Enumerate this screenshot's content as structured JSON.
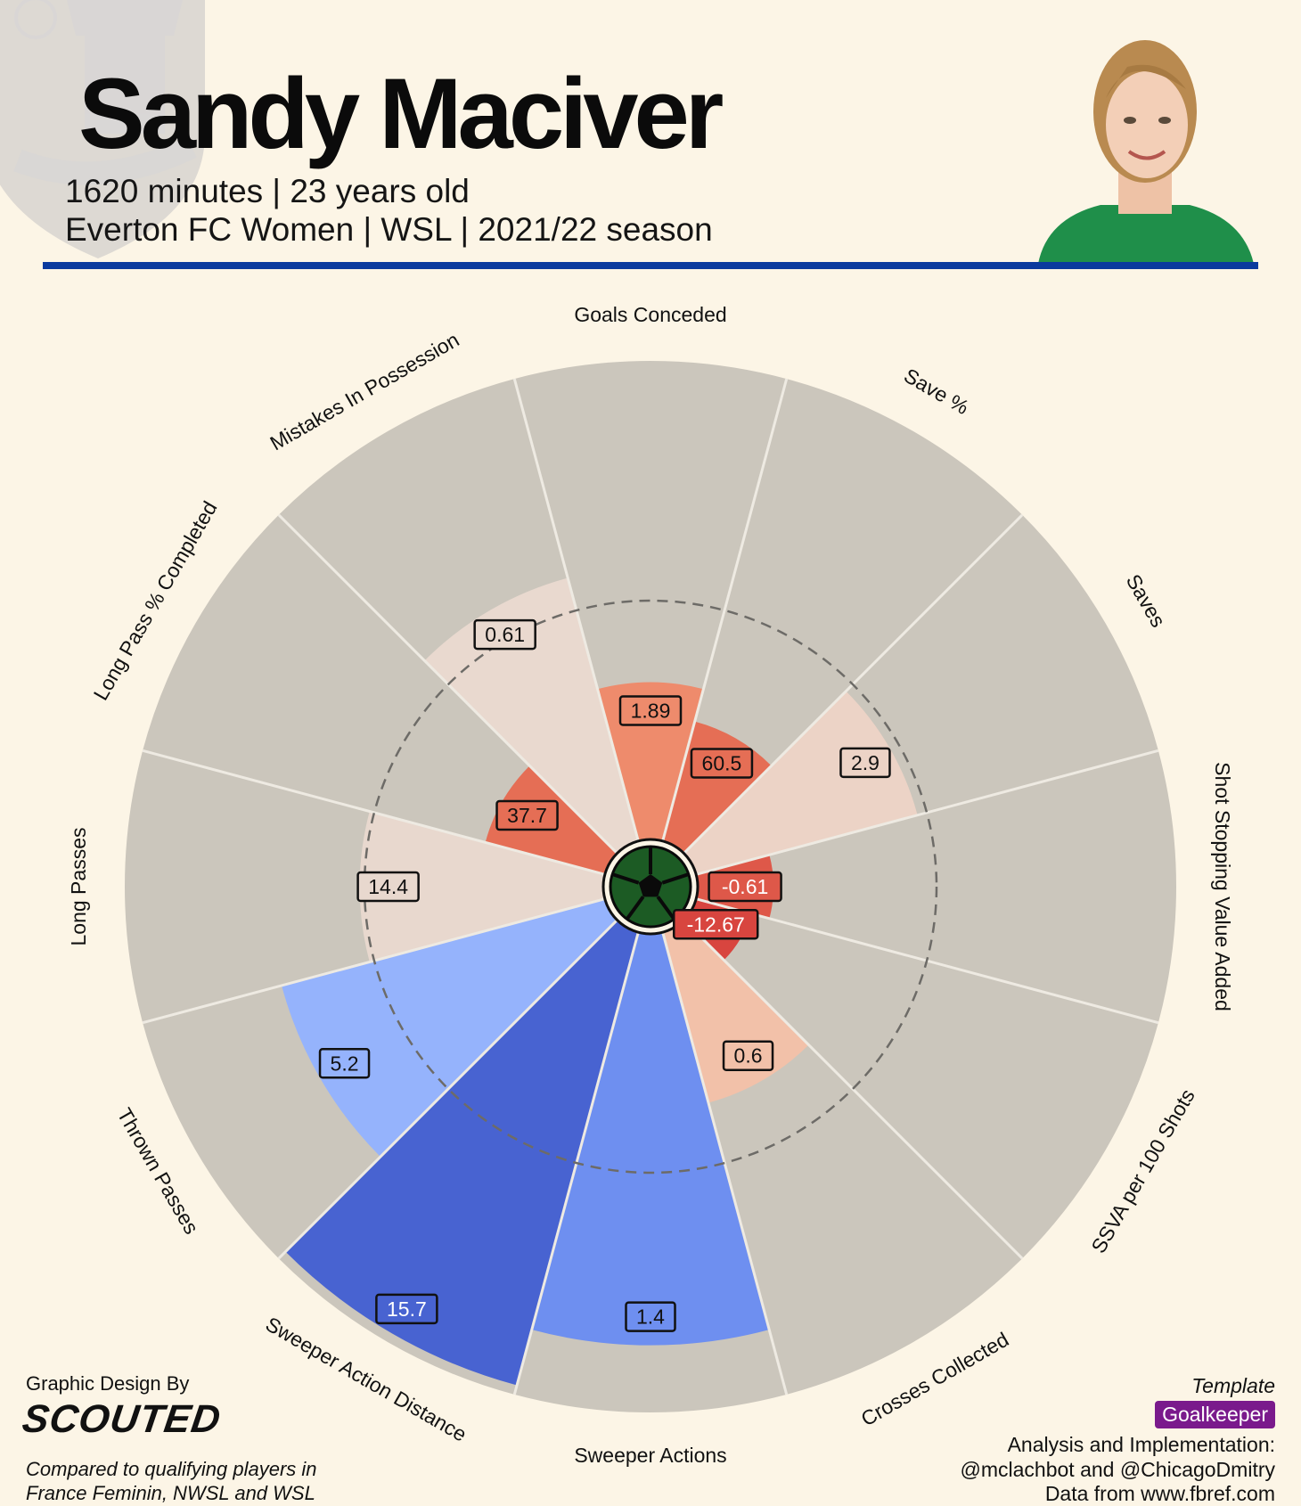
{
  "header": {
    "name": "Sandy Maciver",
    "minutes_age": "1620 minutes | 23 years old",
    "team_league_season": "Everton FC Women | WSL | 2021/22 season",
    "accent_color": "#0a3a9e"
  },
  "footer": {
    "design_by": "Graphic Design By",
    "brand": "SCOUTED",
    "compared_line1": "Compared to qualifying players in",
    "compared_line2": "France Feminin, NWSL and WSL",
    "template_label": "Template",
    "template_value": "Goalkeeper",
    "analysis_line1": "Analysis and Implementation:",
    "analysis_line2": "@mclachbot and @ChicagoDmitry",
    "data_source": "Data from www.fbref.com"
  },
  "chart_data": {
    "type": "polar-bar",
    "title": "",
    "range": [
      0,
      100
    ],
    "reference_circle": 50,
    "categories": [
      {
        "name": "Goals Conceded",
        "value": "1.89",
        "percentile": 33,
        "color": "#ee8b6c"
      },
      {
        "name": "Save %",
        "value": "60.5",
        "percentile": 26,
        "color": "#e56e55"
      },
      {
        "name": "Saves",
        "value": "2.9",
        "percentile": 48,
        "color": "#ecd3c6"
      },
      {
        "name": "Shot Stopping Value Added",
        "value": "-0.61",
        "percentile": 16,
        "color": "#de5849"
      },
      {
        "name": "SSVA per 100 Shots",
        "value": "-12.67",
        "percentile": 12,
        "color": "#d8453f"
      },
      {
        "name": "Crosses Collected",
        "value": "0.6",
        "percentile": 37,
        "color": "#f2c1a9"
      },
      {
        "name": "Sweeper Actions",
        "value": "1.4",
        "percentile": 86,
        "color": "#6e8ff0"
      },
      {
        "name": "Sweeper Action Distance",
        "value": "15.7",
        "percentile": 98,
        "color": "#4863d1"
      },
      {
        "name": "Thrown Passes",
        "value": "5.2",
        "percentile": 70,
        "color": "#95b3fc"
      },
      {
        "name": "Long Passes",
        "value": "14.4",
        "percentile": 51,
        "color": "#e8d8ce"
      },
      {
        "name": "Long Pass % Completed",
        "value": "37.7",
        "percentile": 26,
        "color": "#e56e55"
      },
      {
        "name": "Mistakes In Possession",
        "value": "0.61",
        "percentile": 57,
        "color": "#e9d9cf"
      }
    ],
    "background_color": "#cbc6bc",
    "grid": true,
    "legend": "none"
  }
}
